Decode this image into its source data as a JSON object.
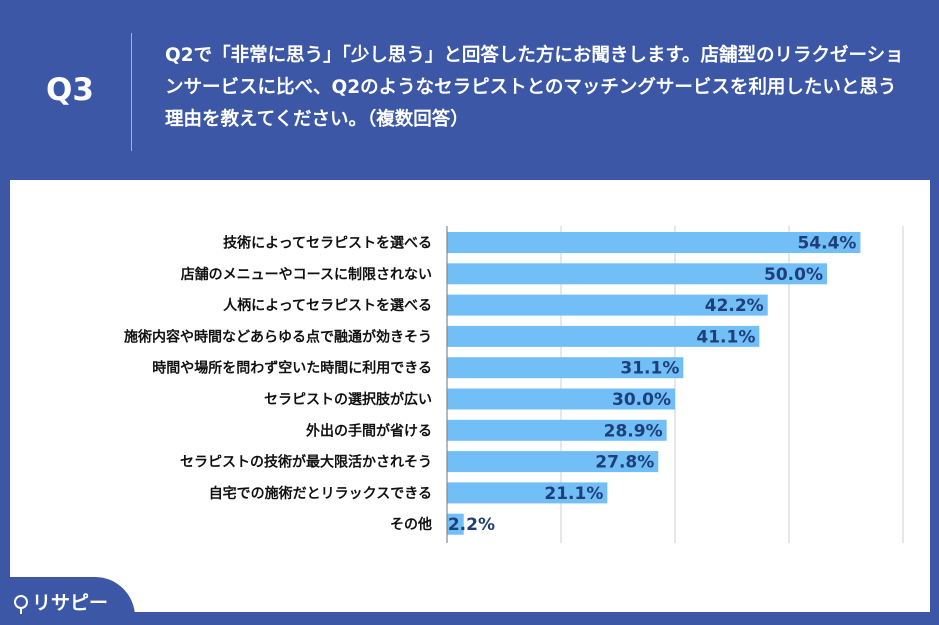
{
  "header": {
    "q_label": "Q3",
    "question": "Q2で「非常に思う」「少し思う」と回答した方にお聞きします。店舗型のリラクゼーションサービスに比べ、Q2のようなセラピストとのマッチングサービスを利用したいと思う理由を教えてください。（複数回答）"
  },
  "logo": {
    "text": "リサピー"
  },
  "colors": {
    "background": "#3b57a5",
    "bar": "#72bef7",
    "value_text": "#1e3f78"
  },
  "chart_data": {
    "type": "bar",
    "orientation": "horizontal",
    "categories": [
      "技術によってセラピストを選べる",
      "店舗のメニューやコースに制限されない",
      "人柄によってセラピストを選べる",
      "施術内容や時間などあらゆる点で融通が効きそう",
      "時間や場所を問わず空いた時間に利用できる",
      "セラピストの選択肢が広い",
      "外出の手間が省ける",
      "セラピストの技術が最大限活かされそう",
      "自宅での施術だとリラックスできる",
      "その他"
    ],
    "values": [
      54.4,
      50.0,
      42.2,
      41.1,
      31.1,
      30.0,
      28.9,
      27.8,
      21.1,
      2.2
    ],
    "value_labels": [
      "54.4%",
      "50.0%",
      "42.2%",
      "41.1%",
      "31.1%",
      "30.0%",
      "28.9%",
      "27.8%",
      "21.1%",
      "2.2%"
    ],
    "xlim": [
      0,
      60
    ],
    "gridlines": [
      15,
      30,
      45,
      60
    ],
    "grid": true,
    "title": "",
    "xlabel": "",
    "ylabel": ""
  }
}
